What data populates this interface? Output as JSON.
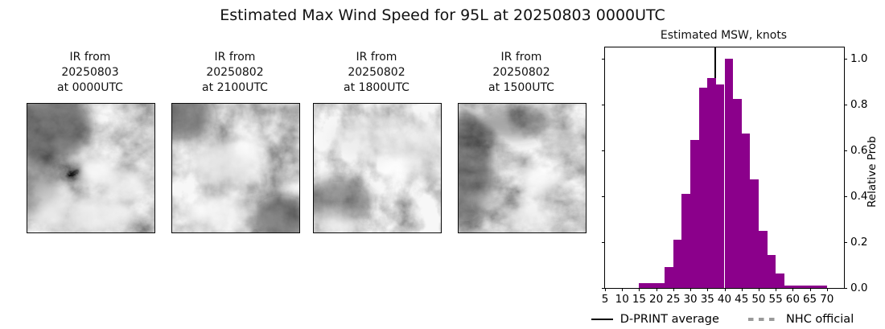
{
  "figure_title": "Estimated Max Wind Speed for 95L at 20250803 0000UTC",
  "ir_panels": [
    {
      "caption_lines": [
        "IR from",
        "20250803",
        "at 0000UTC"
      ]
    },
    {
      "caption_lines": [
        "IR from",
        "20250802",
        "at 2100UTC"
      ]
    },
    {
      "caption_lines": [
        "IR from",
        "20250802",
        "at 1800UTC"
      ]
    },
    {
      "caption_lines": [
        "IR from",
        "20250802",
        "at 1500UTC"
      ]
    }
  ],
  "chart_data": {
    "type": "bar",
    "title": "Estimated MSW, knots",
    "xlabel": "",
    "ylabel": "Relative Prob",
    "bar_color": "#8B008B",
    "bin_start": 15,
    "bin_width": 2.5,
    "bin_unit": "knots",
    "values": [
      0.02,
      0.02,
      0.02,
      0.09,
      0.21,
      0.41,
      0.645,
      0.875,
      0.915,
      0.89,
      1.0,
      0.825,
      0.675,
      0.475,
      0.25,
      0.145,
      0.065,
      0.012,
      0.012,
      0.012,
      0.012,
      0.012
    ],
    "x_ticks": [
      5,
      10,
      15,
      20,
      25,
      30,
      35,
      40,
      45,
      50,
      55,
      60,
      65,
      70
    ],
    "y_ticks": [
      0.0,
      0.2,
      0.4,
      0.6,
      0.8,
      1.0
    ],
    "xlim": [
      5,
      75
    ],
    "ylim": [
      0,
      1.05
    ],
    "grid": false,
    "legend_position": "bottom",
    "average_line": {
      "label": "D-PRINT average",
      "value": 37.4,
      "color": "#000000"
    },
    "legend": [
      {
        "label": "D-PRINT average",
        "style": "solid",
        "color": "#000000"
      },
      {
        "label": "NHC official",
        "style": "dashed",
        "color": "#9a9a9a"
      }
    ]
  }
}
